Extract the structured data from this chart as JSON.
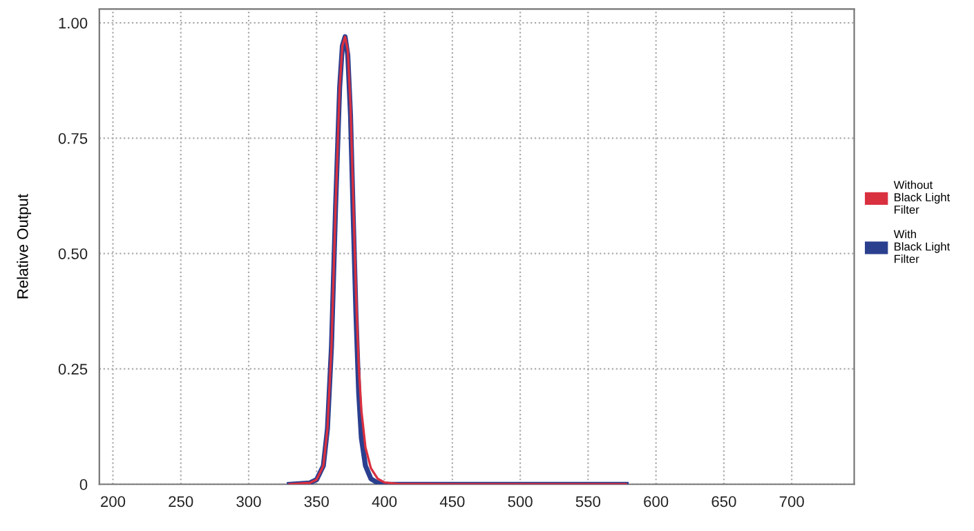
{
  "chart_data": {
    "type": "line",
    "ylabel": "Relative Output",
    "xlim": [
      190,
      746
    ],
    "ylim": [
      0,
      1.03
    ],
    "xticks": [
      200,
      250,
      300,
      350,
      400,
      450,
      500,
      550,
      600,
      650,
      700
    ],
    "yticks": [
      {
        "value": 0,
        "label": "0"
      },
      {
        "value": 0.25,
        "label": "0.25"
      },
      {
        "value": 0.5,
        "label": "0.50"
      },
      {
        "value": 0.75,
        "label": "0.75"
      },
      {
        "value": 1.0,
        "label": "1.00"
      }
    ],
    "grid": true,
    "legend": "right",
    "marker": "none",
    "line_style": "solid",
    "series": [
      {
        "name": "Without Black Light Filter",
        "color": "#d9303f",
        "x": [
          330,
          345,
          350,
          355,
          358,
          361,
          364,
          367,
          369,
          371,
          373,
          375,
          377,
          379,
          381,
          383,
          386,
          390,
          395,
          400,
          410,
          450,
          578
        ],
        "values": [
          0,
          0.003,
          0.01,
          0.04,
          0.12,
          0.3,
          0.6,
          0.86,
          0.95,
          0.97,
          0.94,
          0.82,
          0.62,
          0.42,
          0.26,
          0.16,
          0.08,
          0.035,
          0.012,
          0.004,
          0.001,
          0,
          0
        ]
      },
      {
        "name": "With Black Light Filter",
        "color": "#2b3f8f",
        "x": [
          330,
          345,
          350,
          355,
          358,
          361,
          364,
          367,
          369,
          371,
          373,
          375,
          377,
          379,
          381,
          383,
          386,
          390,
          395,
          400,
          410,
          450,
          578
        ],
        "values": [
          0,
          0.003,
          0.01,
          0.04,
          0.12,
          0.3,
          0.6,
          0.86,
          0.95,
          0.97,
          0.93,
          0.8,
          0.58,
          0.37,
          0.2,
          0.1,
          0.04,
          0.012,
          0.003,
          0,
          0,
          0,
          0
        ]
      }
    ]
  }
}
